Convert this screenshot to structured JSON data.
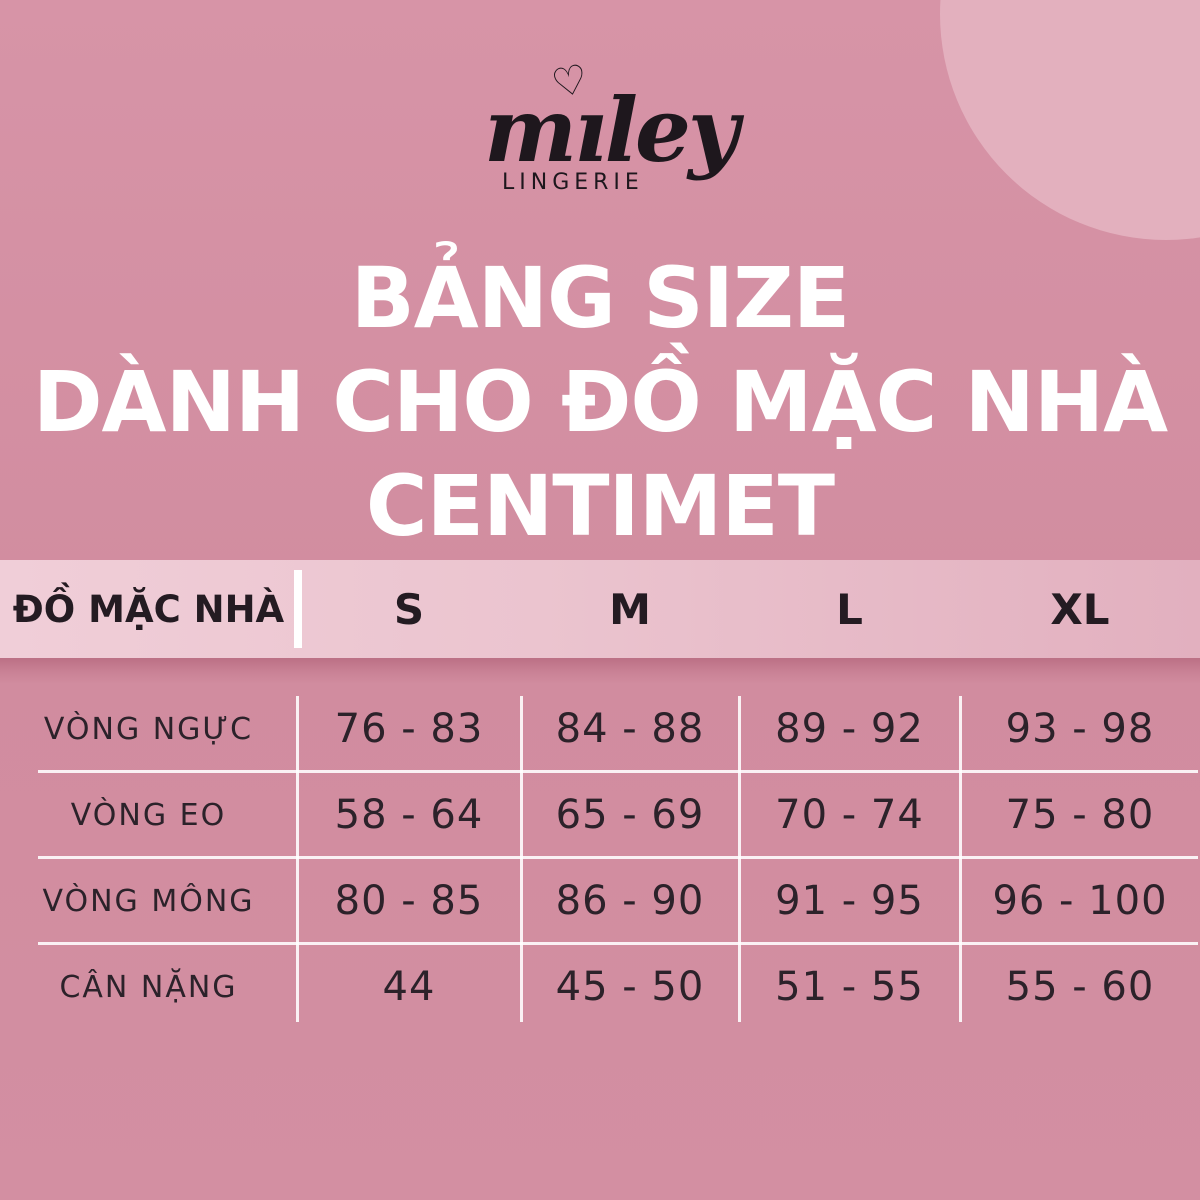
{
  "brand": {
    "wordmark": "miley",
    "script_pre": "m",
    "script_i": "ı",
    "script_post": "ley",
    "heart": "♡",
    "subtitle": "LINGERIE"
  },
  "title": {
    "line1": "BẢNG SIZE",
    "line2": "DÀNH CHO ĐỒ MẶC NHÀ",
    "line3": "CENTIMET"
  },
  "chart_data": {
    "type": "table",
    "title": "BẢNG SIZE DÀNH CHO ĐỒ MẶC NHÀ CENTIMET",
    "columns": [
      "ĐỒ MẶC NHÀ",
      "S",
      "M",
      "L",
      "XL"
    ],
    "rows": [
      [
        "VÒNG NGỰC",
        "76 - 83",
        "84 - 88",
        "89 - 92",
        "93 - 98"
      ],
      [
        "VÒNG EO",
        "58 - 64",
        "65 - 69",
        "70 - 74",
        "75 - 80"
      ],
      [
        "VÒNG MÔNG",
        "80 - 85",
        "86 - 90",
        "91 - 95",
        "96 - 100"
      ],
      [
        "CÂN NẶNG",
        "44",
        "45 - 50",
        "51 - 55",
        "55 - 60"
      ]
    ]
  },
  "colors": {
    "background": "#d18c9f",
    "corner_circle": "#e3b0be",
    "header_band_left": "#f0ced8",
    "header_band_right": "#e2b0bf",
    "band_shadow": "#a6546b",
    "grid_line": "#ffffff",
    "title_text": "#ffffff",
    "table_text": "#2c222a",
    "logo_text": "#1e171d"
  }
}
